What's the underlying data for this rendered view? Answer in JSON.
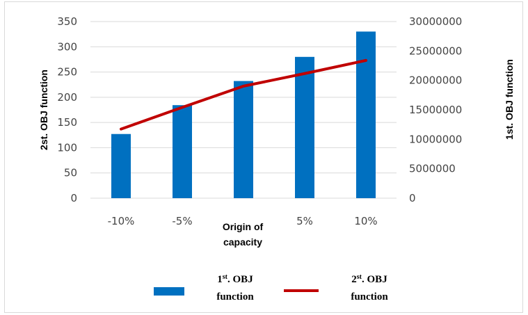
{
  "chart_data": {
    "type": "bar+line",
    "categories": [
      "-10%",
      "-5%",
      "",
      "5%",
      "10%"
    ],
    "xlabel": [
      "Origin of",
      "capacity"
    ],
    "series": [
      {
        "name": "1st. OBJ function",
        "kind": "bar",
        "axis": "right",
        "color": "#0070C0",
        "values": [
          10900000,
          15800000,
          19900000,
          24000000,
          28300000
        ]
      },
      {
        "name": "2st. OBJ function",
        "kind": "line",
        "axis": "left",
        "color": "#C00000",
        "values": [
          137,
          180,
          222,
          247,
          273
        ]
      }
    ],
    "left_axis": {
      "label": "2st. OBJ function",
      "range": [
        0,
        350
      ],
      "ticks": [
        0,
        50,
        100,
        150,
        200,
        250,
        300,
        350
      ]
    },
    "right_axis": {
      "label": "1st. OBJ function",
      "range": [
        0,
        30000000
      ],
      "ticks": [
        0,
        5000000,
        10000000,
        15000000,
        20000000,
        25000000,
        30000000
      ]
    },
    "grid": true,
    "legend_position": "bottom",
    "legend": [
      {
        "base": "1",
        "sup": "st",
        "rest": ". OBJ",
        "line2": "function",
        "kind": "bar"
      },
      {
        "base": "2",
        "sup": "st",
        "rest": ". OBJ",
        "line2": "function",
        "kind": "line"
      }
    ]
  }
}
